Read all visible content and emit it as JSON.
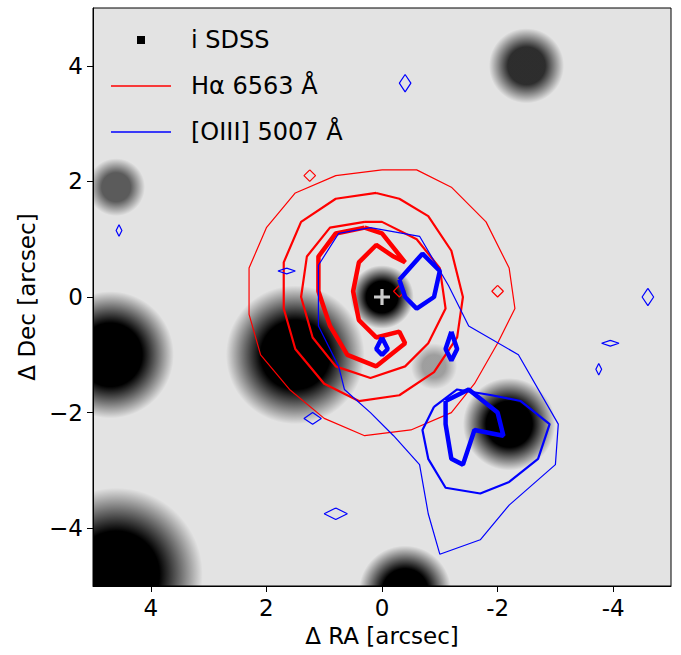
{
  "chart_data": {
    "type": "contour",
    "xlabel": "Δ RA [arcsec]",
    "ylabel": "Δ Dec [arcsec]",
    "xlim": [
      5,
      -5
    ],
    "ylim": [
      -5,
      5
    ],
    "xticks": [
      4,
      2,
      0,
      -2,
      -4
    ],
    "yticks": [
      {
        "value": -4,
        "label": "−4"
      },
      {
        "value": -2,
        "label": "−2"
      },
      0,
      2,
      4
    ],
    "legend": "upper left",
    "image": {
      "name": "i SDSS",
      "marker": "square",
      "color": "black",
      "sources": [
        {
          "x": 0.0,
          "y": 0.0,
          "radius": 0.55,
          "depth": 1.0
        },
        {
          "x": 1.5,
          "y": -1.0,
          "radius": 1.2,
          "depth": 1.0
        },
        {
          "x": 4.7,
          "y": -1.0,
          "radius": 1.1,
          "depth": 1.0
        },
        {
          "x": 4.6,
          "y": 1.9,
          "radius": 0.5,
          "depth": 0.6
        },
        {
          "x": -2.2,
          "y": -2.2,
          "radius": 0.8,
          "depth": 1.0
        },
        {
          "x": -2.5,
          "y": 4.0,
          "radius": 0.65,
          "depth": 0.8
        },
        {
          "x": 4.6,
          "y": -4.8,
          "radius": 1.5,
          "depth": 1.0
        },
        {
          "x": -0.4,
          "y": -5.1,
          "radius": 0.8,
          "depth": 1.0
        },
        {
          "x": -0.9,
          "y": -1.2,
          "radius": 0.4,
          "depth": 0.3
        }
      ]
    },
    "series": [
      {
        "name": "Hα 6563 Å",
        "color": "red",
        "contours": [
          {
            "line_style": "thin",
            "points": [
              [
                0.0,
                2.2
              ],
              [
                0.8,
                2.1
              ],
              [
                1.5,
                1.8
              ],
              [
                2.0,
                1.2
              ],
              [
                2.3,
                0.5
              ],
              [
                2.3,
                -0.3
              ],
              [
                2.1,
                -1.0
              ],
              [
                1.6,
                -1.6
              ],
              [
                1.0,
                -2.1
              ],
              [
                0.3,
                -2.4
              ],
              [
                -0.5,
                -2.3
              ],
              [
                -1.2,
                -2.0
              ],
              [
                -1.6,
                -1.5
              ],
              [
                -2.0,
                -0.8
              ],
              [
                -2.3,
                -0.2
              ],
              [
                -2.2,
                0.5
              ],
              [
                -1.8,
                1.3
              ],
              [
                -1.2,
                1.9
              ],
              [
                -0.6,
                2.2
              ],
              [
                0.0,
                2.2
              ]
            ]
          },
          {
            "line_style": "medium",
            "points": [
              [
                0.1,
                1.8
              ],
              [
                0.8,
                1.7
              ],
              [
                1.4,
                1.3
              ],
              [
                1.7,
                0.6
              ],
              [
                1.7,
                -0.2
              ],
              [
                1.5,
                -0.9
              ],
              [
                1.0,
                -1.5
              ],
              [
                0.4,
                -1.8
              ],
              [
                -0.3,
                -1.7
              ],
              [
                -0.9,
                -1.3
              ],
              [
                -1.3,
                -0.7
              ],
              [
                -1.4,
                0.0
              ],
              [
                -1.2,
                0.8
              ],
              [
                -0.8,
                1.4
              ],
              [
                -0.3,
                1.7
              ],
              [
                0.1,
                1.8
              ]
            ]
          },
          {
            "line_style": "medium",
            "points": [
              [
                0.3,
                1.3
              ],
              [
                0.9,
                1.2
              ],
              [
                1.3,
                0.7
              ],
              [
                1.4,
                0.0
              ],
              [
                1.2,
                -0.7
              ],
              [
                0.8,
                -1.2
              ],
              [
                0.2,
                -1.4
              ],
              [
                -0.4,
                -1.2
              ],
              [
                -0.8,
                -0.8
              ],
              [
                -1.1,
                -0.2
              ],
              [
                -1.0,
                0.5
              ],
              [
                -0.6,
                1.0
              ],
              [
                0.0,
                1.3
              ],
              [
                0.3,
                1.3
              ]
            ]
          },
          {
            "line_style": "thick",
            "points": [
              [
                0.3,
                1.2
              ],
              [
                0.8,
                1.1
              ],
              [
                1.1,
                0.7
              ],
              [
                1.1,
                0.1
              ],
              [
                0.9,
                -0.5
              ],
              [
                0.6,
                -1.0
              ],
              [
                0.1,
                -1.2
              ],
              [
                -0.4,
                -0.8
              ],
              [
                -0.3,
                -0.6
              ],
              [
                0.1,
                -0.7
              ],
              [
                0.4,
                -0.4
              ],
              [
                0.5,
                0.1
              ],
              [
                0.4,
                0.6
              ],
              [
                0.1,
                0.9
              ],
              [
                -0.2,
                0.7
              ],
              [
                -0.4,
                0.6
              ],
              [
                0.0,
                1.1
              ],
              [
                0.3,
                1.2
              ]
            ]
          },
          {
            "line_style": "thin",
            "points": [
              [
                -0.3,
                0.2
              ],
              [
                -0.4,
                0.1
              ],
              [
                -0.3,
                0.0
              ],
              [
                -0.2,
                0.1
              ],
              [
                -0.3,
                0.2
              ]
            ]
          },
          {
            "line_style": "thin",
            "points": [
              [
                1.25,
                2.2
              ],
              [
                1.15,
                2.1
              ],
              [
                1.25,
                2.0
              ],
              [
                1.35,
                2.1
              ],
              [
                1.25,
                2.2
              ]
            ]
          },
          {
            "line_style": "thin",
            "points": [
              [
                -2.0,
                0.2
              ],
              [
                -2.1,
                0.1
              ],
              [
                -2.0,
                0.0
              ],
              [
                -1.9,
                0.1
              ],
              [
                -2.0,
                0.2
              ]
            ]
          }
        ]
      },
      {
        "name": "[OIII] 5007 Å",
        "color": "blue",
        "contours": [
          {
            "line_style": "thin",
            "points": [
              [
                0.2,
                1.2
              ],
              [
                -0.65,
                1.05
              ],
              [
                -1.15,
                0.2
              ],
              [
                -1.5,
                -0.5
              ],
              [
                -2.36,
                -1.0
              ],
              [
                -3.05,
                -2.2
              ],
              [
                -3.0,
                -2.9
              ],
              [
                -2.2,
                -3.6
              ],
              [
                -1.7,
                -4.2
              ],
              [
                -1.0,
                -4.45
              ],
              [
                -0.8,
                -3.75
              ],
              [
                -0.65,
                -2.9
              ],
              [
                -0.2,
                -2.4
              ],
              [
                0.2,
                -2.0
              ],
              [
                0.65,
                -1.6
              ],
              [
                0.75,
                -1.2
              ],
              [
                1.1,
                -0.5
              ],
              [
                1.1,
                0.55
              ],
              [
                0.75,
                1.1
              ],
              [
                0.2,
                1.2
              ]
            ]
          },
          {
            "line_style": "medium",
            "points": [
              [
                -0.9,
                -1.9
              ],
              [
                -1.3,
                -1.6
              ],
              [
                -1.9,
                -1.7
              ],
              [
                -2.4,
                -1.8
              ],
              [
                -2.9,
                -2.2
              ],
              [
                -2.7,
                -2.8
              ],
              [
                -2.2,
                -3.2
              ],
              [
                -1.7,
                -3.4
              ],
              [
                -1.1,
                -3.3
              ],
              [
                -0.8,
                -2.8
              ],
              [
                -0.7,
                -2.3
              ],
              [
                -0.9,
                -1.9
              ]
            ]
          },
          {
            "line_style": "thick",
            "points": [
              [
                -1.1,
                -1.8
              ],
              [
                -1.5,
                -1.6
              ],
              [
                -2.0,
                -2.0
              ],
              [
                -2.1,
                -2.4
              ],
              [
                -1.6,
                -2.3
              ],
              [
                -1.4,
                -2.9
              ],
              [
                -1.2,
                -2.8
              ],
              [
                -1.1,
                -2.2
              ],
              [
                -1.1,
                -1.8
              ]
            ]
          },
          {
            "line_style": "thick",
            "points": [
              [
                -0.3,
                0.3
              ],
              [
                -0.7,
                0.75
              ],
              [
                -1.0,
                0.45
              ],
              [
                -0.9,
                0.0
              ],
              [
                -0.6,
                -0.2
              ],
              [
                -0.4,
                0.0
              ],
              [
                -0.3,
                0.3
              ]
            ]
          },
          {
            "line_style": "thick",
            "points": [
              [
                -1.2,
                -0.6
              ],
              [
                -1.3,
                -0.9
              ],
              [
                -1.2,
                -1.1
              ],
              [
                -1.1,
                -0.9
              ],
              [
                -1.2,
                -0.6
              ]
            ]
          },
          {
            "line_style": "thick",
            "points": [
              [
                0.0,
                -0.7
              ],
              [
                0.1,
                -0.9
              ],
              [
                0.0,
                -1.0
              ],
              [
                -0.1,
                -0.9
              ],
              [
                0.0,
                -0.7
              ]
            ]
          },
          {
            "line_style": "thin",
            "points": [
              [
                -0.4,
                3.85
              ],
              [
                -0.5,
                3.7
              ],
              [
                -0.4,
                3.55
              ],
              [
                -0.3,
                3.7
              ],
              [
                -0.4,
                3.85
              ]
            ]
          },
          {
            "line_style": "thin",
            "points": [
              [
                0.8,
                -3.65
              ],
              [
                0.6,
                -3.75
              ],
              [
                0.8,
                -3.85
              ],
              [
                1.0,
                -3.75
              ],
              [
                0.8,
                -3.65
              ]
            ]
          },
          {
            "line_style": "thin",
            "points": [
              [
                1.65,
                0.5
              ],
              [
                1.5,
                0.45
              ],
              [
                1.65,
                0.4
              ],
              [
                1.8,
                0.45
              ],
              [
                1.65,
                0.5
              ]
            ]
          },
          {
            "line_style": "thin",
            "points": [
              [
                4.55,
                1.25
              ],
              [
                4.5,
                1.15
              ],
              [
                4.55,
                1.05
              ],
              [
                4.6,
                1.15
              ],
              [
                4.55,
                1.25
              ]
            ]
          },
          {
            "line_style": "thin",
            "points": [
              [
                -4.6,
                0.15
              ],
              [
                -4.7,
                0.0
              ],
              [
                -4.6,
                -0.15
              ],
              [
                -4.5,
                0.0
              ],
              [
                -4.6,
                0.15
              ]
            ]
          },
          {
            "line_style": "thin",
            "points": [
              [
                -3.95,
                -0.75
              ],
              [
                -4.1,
                -0.8
              ],
              [
                -3.95,
                -0.85
              ],
              [
                -3.8,
                -0.8
              ],
              [
                -3.95,
                -0.75
              ]
            ]
          },
          {
            "line_style": "thin",
            "points": [
              [
                -3.75,
                -1.15
              ],
              [
                -3.8,
                -1.25
              ],
              [
                -3.75,
                -1.35
              ],
              [
                -3.7,
                -1.25
              ],
              [
                -3.75,
                -1.15
              ]
            ]
          },
          {
            "line_style": "thin",
            "points": [
              [
                1.2,
                -2.0
              ],
              [
                1.05,
                -2.1
              ],
              [
                1.2,
                -2.2
              ],
              [
                1.35,
                -2.1
              ],
              [
                1.2,
                -2.0
              ]
            ]
          }
        ]
      }
    ],
    "markers": [
      {
        "x": 0,
        "y": 0,
        "marker": "plus",
        "color": "white"
      }
    ]
  }
}
